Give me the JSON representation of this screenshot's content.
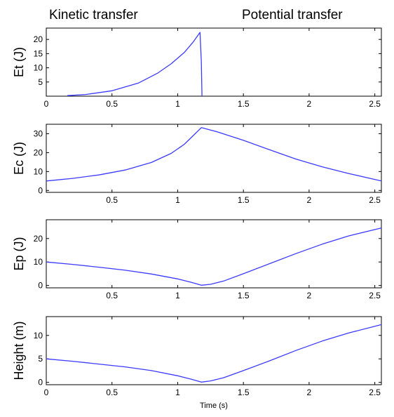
{
  "headers": {
    "left": "Kinetic transfer",
    "right": "Potential transfer"
  },
  "chart_data": [
    {
      "type": "line",
      "ylabel": "Et (J)",
      "xlabel": "",
      "xlim": [
        0,
        2.55
      ],
      "ylim": [
        0,
        24
      ],
      "xticks": [
        0,
        0.5,
        1,
        1.5,
        2,
        2.5
      ],
      "xtick_labels": [
        "0",
        "0.5",
        "1",
        "1.5",
        "2",
        "2.5"
      ],
      "yticks": [
        5,
        10,
        15,
        20
      ],
      "ytick_labels": [
        "5",
        "10",
        "15",
        "20"
      ],
      "line_color": "#3b3bff",
      "series": [
        {
          "x": [
            0.16,
            0.3,
            0.5,
            0.7,
            0.85,
            0.95,
            1.05,
            1.12,
            1.17,
            1.18,
            1.185
          ],
          "y": [
            0.2,
            0.6,
            1.9,
            4.6,
            8.2,
            11.4,
            15.4,
            19.2,
            22.5,
            12,
            0
          ]
        }
      ]
    },
    {
      "type": "line",
      "ylabel": "Ec (J)",
      "xlabel": "",
      "xlim": [
        0,
        2.55
      ],
      "ylim": [
        -1,
        35
      ],
      "xticks": [
        0.5,
        1,
        1.5,
        2,
        2.5
      ],
      "xtick_labels": [
        "0.5",
        "1",
        "1.5",
        "2",
        "2.5"
      ],
      "yticks": [
        0,
        10,
        20,
        30
      ],
      "ytick_labels": [
        "0",
        "10",
        "20",
        "30"
      ],
      "line_color": "#3b3bff",
      "series": [
        {
          "x": [
            0,
            0.2,
            0.4,
            0.6,
            0.8,
            0.95,
            1.05,
            1.12,
            1.18,
            1.3,
            1.5,
            1.7,
            1.9,
            2.1,
            2.3,
            2.55
          ],
          "y": [
            5,
            6.4,
            8.2,
            10.8,
            14.8,
            19.6,
            24.4,
            29.1,
            33.2,
            31,
            26.5,
            21.5,
            16.6,
            12.5,
            9.0,
            5.0
          ]
        }
      ]
    },
    {
      "type": "line",
      "ylabel": "Ep (J)",
      "xlabel": "",
      "xlim": [
        0,
        2.55
      ],
      "ylim": [
        -1,
        28
      ],
      "xticks": [
        0.5,
        1,
        1.5,
        2,
        2.5
      ],
      "xtick_labels": [
        "0.5",
        "1",
        "1.5",
        "2",
        "2.5"
      ],
      "yticks": [
        0,
        10,
        20
      ],
      "ytick_labels": [
        "0",
        "10",
        "20"
      ],
      "line_color": "#3b3bff",
      "series": [
        {
          "x": [
            0,
            0.2,
            0.4,
            0.6,
            0.8,
            1.0,
            1.1,
            1.18,
            1.25,
            1.35,
            1.5,
            1.7,
            1.9,
            2.1,
            2.3,
            2.55
          ],
          "y": [
            10,
            9.0,
            7.8,
            6.5,
            4.9,
            2.8,
            1.4,
            0.1,
            0.5,
            1.9,
            5.0,
            9.3,
            13.6,
            17.6,
            21.1,
            24.5
          ]
        }
      ]
    },
    {
      "type": "line",
      "ylabel": "Height (m)",
      "xlabel": "Time (s)",
      "xlim": [
        0,
        2.55
      ],
      "ylim": [
        -0.5,
        14
      ],
      "xticks": [
        0,
        0.5,
        1,
        1.5,
        2,
        2.5
      ],
      "xtick_labels": [
        "0",
        "0.5",
        "1",
        "1.5",
        "2",
        "2.5"
      ],
      "yticks": [
        0,
        5,
        10
      ],
      "ytick_labels": [
        "0",
        "5",
        "10"
      ],
      "line_color": "#3b3bff",
      "series": [
        {
          "x": [
            0,
            0.2,
            0.4,
            0.6,
            0.8,
            1.0,
            1.1,
            1.18,
            1.25,
            1.35,
            1.5,
            1.7,
            1.9,
            2.1,
            2.3,
            2.55
          ],
          "y": [
            5.0,
            4.5,
            3.9,
            3.3,
            2.5,
            1.4,
            0.7,
            0.05,
            0.3,
            1.0,
            2.5,
            4.6,
            6.8,
            8.8,
            10.5,
            12.3
          ]
        }
      ]
    }
  ]
}
